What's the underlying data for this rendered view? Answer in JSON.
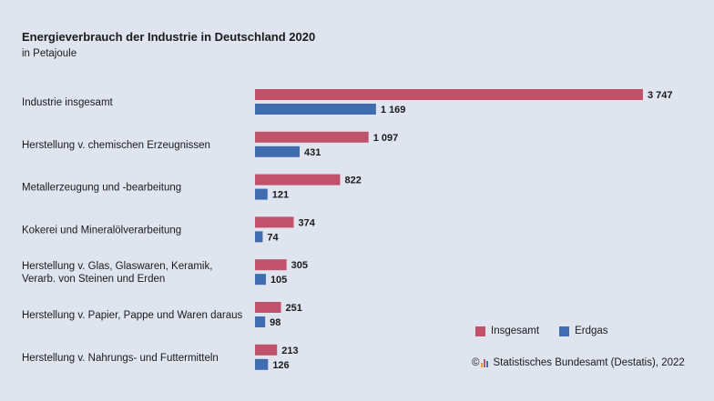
{
  "chart_data": {
    "type": "bar",
    "orientation": "horizontal",
    "title": "Energieverbrauch der Industrie in Deutschland 2020",
    "subtitle": "in Petajoule",
    "categories": [
      [
        "Industrie insgesamt"
      ],
      [
        "Herstellung v. chemischen Erzeugnissen"
      ],
      [
        "Metallerzeugung und -bearbeitung"
      ],
      [
        "Kokerei und Mineralölverarbeitung"
      ],
      [
        "Herstellung v. Glas, Glaswaren, Keramik,",
        "Verarb. von Steinen und Erden"
      ],
      [
        "Herstellung v. Papier, Pappe und Waren daraus"
      ],
      [
        "Herstellung v. Nahrungs- und Futtermitteln"
      ]
    ],
    "series": [
      {
        "name": "Insgesamt",
        "color": "#c0536b",
        "values": [
          3747,
          1097,
          822,
          374,
          305,
          251,
          213
        ],
        "labels": [
          "3 747",
          "1 097",
          "822",
          "374",
          "305",
          "251",
          "213"
        ]
      },
      {
        "name": "Erdgas",
        "color": "#3f6db0",
        "values": [
          1169,
          431,
          121,
          74,
          105,
          98,
          126
        ],
        "labels": [
          "1 169",
          "431",
          "121",
          "74",
          "105",
          "98",
          "126"
        ]
      }
    ],
    "xlim": [
      0,
      3747
    ],
    "grid": false,
    "legend": "bottom-right"
  },
  "source": {
    "copyright": "©",
    "text": "Statistisches Bundesamt (Destatis), 2022",
    "logo_colors": [
      "#e8a33a",
      "#c0536b",
      "#3f6db0"
    ]
  }
}
